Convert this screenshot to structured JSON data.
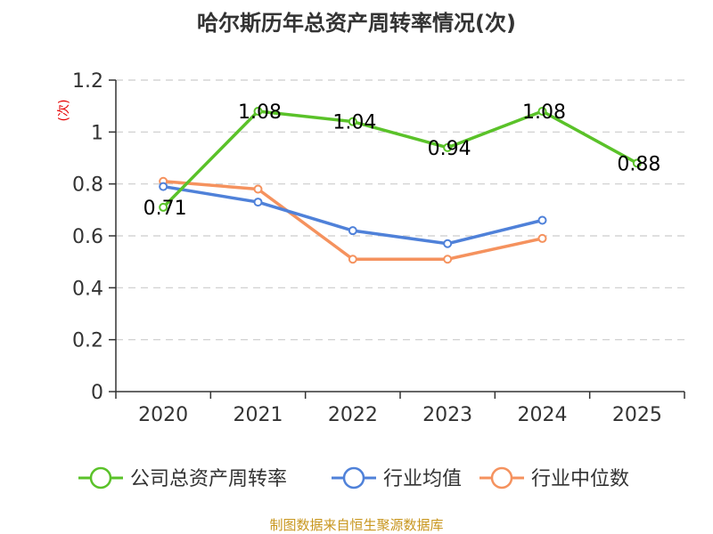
{
  "chart_data": {
    "type": "line",
    "title": "哈尔斯历年总资产周转率情况(次)",
    "ylabel": "(次)",
    "categories": [
      "2020",
      "2021",
      "2022",
      "2023",
      "2024",
      "2025"
    ],
    "ylim": [
      0,
      1.2
    ],
    "yticks": [
      "0",
      "0.2",
      "0.4",
      "0.6",
      "0.8",
      "1",
      "1.2"
    ],
    "grid": true,
    "legend_position": "bottom",
    "series": [
      {
        "name": "公司总资产周转率",
        "color": "#5ac229",
        "values": [
          0.71,
          1.08,
          1.04,
          0.94,
          1.08,
          0.88
        ],
        "labels": [
          "0.71",
          "1.08",
          "1.04",
          "0.94",
          "1.08",
          "0.88"
        ]
      },
      {
        "name": "行业均值",
        "color": "#4f81d9",
        "values": [
          0.79,
          0.73,
          0.62,
          0.57,
          0.66,
          null
        ]
      },
      {
        "name": "行业中位数",
        "color": "#f5925e",
        "values": [
          0.81,
          0.78,
          0.51,
          0.51,
          0.59,
          null
        ]
      }
    ],
    "source": "制图数据来自恒生聚源数据库"
  }
}
